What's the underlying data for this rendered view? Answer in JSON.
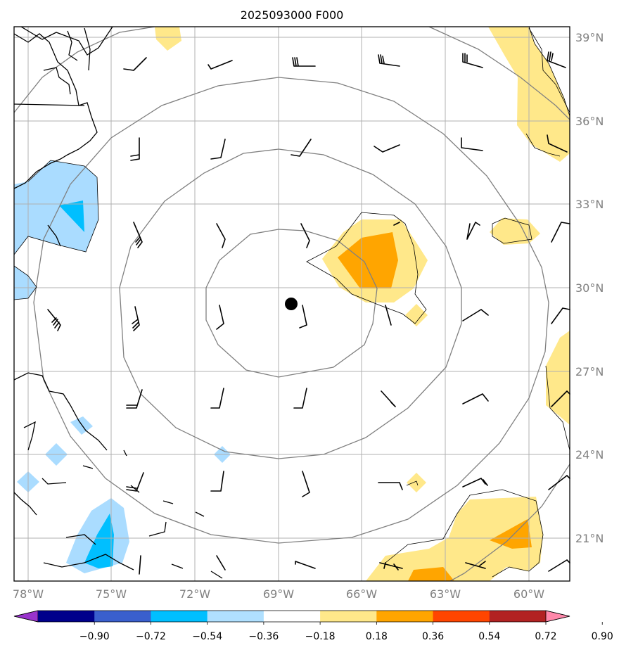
{
  "title": "2025093000 F000",
  "map": {
    "lon_range": [
      -78.5,
      -58.5
    ],
    "lat_range": [
      19,
      39.5
    ],
    "center": {
      "lon": -68.5,
      "lat": 29.4
    },
    "range_rings_deg": [
      3,
      6,
      9,
      12
    ],
    "lon_ticks": [
      {
        "value": -78,
        "label": "78°W"
      },
      {
        "value": -75,
        "label": "75°W"
      },
      {
        "value": -72,
        "label": "72°W"
      },
      {
        "value": -69,
        "label": "69°W"
      },
      {
        "value": -66,
        "label": "66°W"
      },
      {
        "value": -63,
        "label": "63°W"
      },
      {
        "value": -60,
        "label": "60°W"
      }
    ],
    "lat_ticks": [
      {
        "value": 39,
        "label": "39°N"
      },
      {
        "value": 36,
        "label": "36°N"
      },
      {
        "value": 33,
        "label": "33°N"
      },
      {
        "value": 30,
        "label": "30°N"
      },
      {
        "value": 27,
        "label": "27°N"
      },
      {
        "value": 24,
        "label": "24°N"
      },
      {
        "value": 21,
        "label": "21°N"
      }
    ]
  },
  "colorbar": {
    "tick_labels": [
      "−0.90",
      "−0.72",
      "−0.54",
      "−0.36",
      "−0.18",
      "0.18",
      "0.36",
      "0.54",
      "0.72",
      "0.90"
    ],
    "colors": [
      "#9933cc",
      "#00008b",
      "#3a5fcd",
      "#00bfff",
      "#b0e0ff",
      "#ffffff",
      "#ffe88a",
      "#ffa500",
      "#ff4500",
      "#b22222",
      "#ff88aa"
    ]
  },
  "colors": {
    "light_blue": "#aadcff",
    "blue": "#00bfff",
    "light_yellow": "#ffe88a",
    "orange": "#ffa500",
    "ring": "#808080",
    "grid": "#b0b0b0",
    "tick_label": "#808080"
  }
}
